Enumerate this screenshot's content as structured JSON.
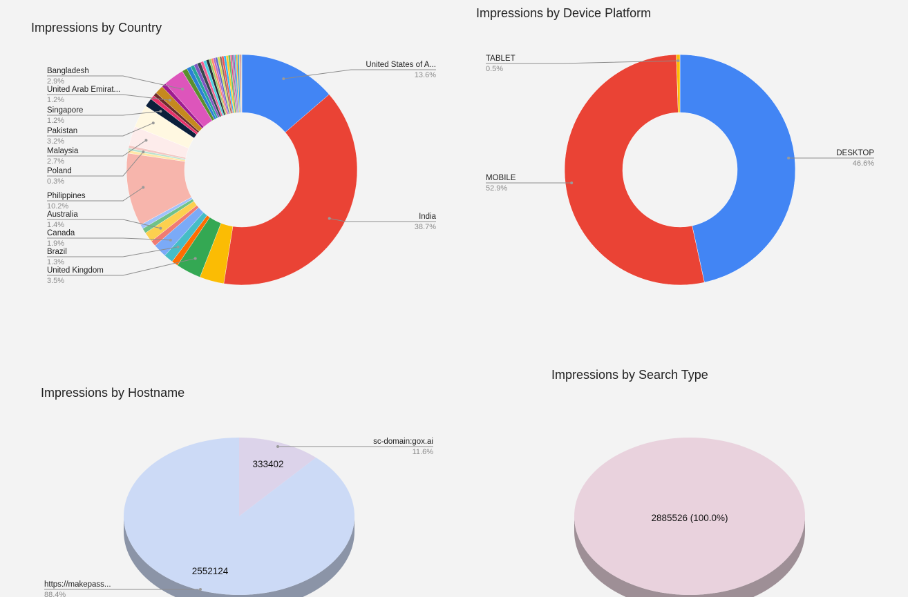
{
  "titles": {
    "country": "Impressions by Country",
    "device": "Impressions by Device Platform",
    "hostname": "Impressions by Hostname",
    "search_type": "Impressions by Search Type"
  },
  "chart_data": [
    {
      "id": "country",
      "type": "pie",
      "donut": true,
      "title": "Impressions by Country",
      "slices": [
        {
          "label": "United States of A...",
          "pct": 13.6,
          "color": "#4285f4"
        },
        {
          "label": "India",
          "pct": 38.7,
          "color": "#ea4335"
        },
        {
          "label": "",
          "pct": 3.4,
          "color": "#fbbc04"
        },
        {
          "label": "United Kingdom",
          "pct": 3.5,
          "color": "#34a853"
        },
        {
          "label": "",
          "pct": 0.9,
          "color": "#ff6d01"
        },
        {
          "label": "Brazil",
          "pct": 1.3,
          "color": "#46bdc6"
        },
        {
          "label": "Canada",
          "pct": 1.9,
          "color": "#7baaf7"
        },
        {
          "label": "",
          "pct": 0.8,
          "color": "#f07b72"
        },
        {
          "label": "Australia",
          "pct": 1.4,
          "color": "#fcd04f"
        },
        {
          "label": "",
          "pct": 0.7,
          "color": "#71c287"
        },
        {
          "label": "",
          "pct": 0.6,
          "color": "#a1c2fa"
        },
        {
          "label": "Philippines",
          "pct": 10.2,
          "color": "#f7b5ac"
        },
        {
          "label": "",
          "pct": 0.4,
          "color": "#ffe7a8"
        },
        {
          "label": "Poland",
          "pct": 0.3,
          "color": "#b7e1cd"
        },
        {
          "label": "",
          "pct": 0.4,
          "color": "#f4c7c3"
        },
        {
          "label": "Malaysia",
          "pct": 2.7,
          "color": "#fdeceb"
        },
        {
          "label": "Pakistan",
          "pct": 3.2,
          "color": "#fff8e1"
        },
        {
          "label": "Singapore",
          "pct": 1.2,
          "color": "#0b1f3b"
        },
        {
          "label": "",
          "pct": 0.6,
          "color": "#e8336b"
        },
        {
          "label": "",
          "pct": 0.5,
          "color": "#6b2b2b"
        },
        {
          "label": "United Arab Emirat...",
          "pct": 1.2,
          "color": "#c5891f"
        },
        {
          "label": "",
          "pct": 0.6,
          "color": "#9e1b8f"
        },
        {
          "label": "Bangladesh",
          "pct": 2.9,
          "color": "#dd55bb"
        },
        {
          "label": "",
          "pct": 0.7,
          "color": "#5a8f2e"
        },
        {
          "label": "",
          "pct": 0.6,
          "color": "#2b7fd6"
        },
        {
          "label": "",
          "pct": 0.5,
          "color": "#26a69a"
        },
        {
          "label": "",
          "pct": 0.5,
          "color": "#7e57c2"
        },
        {
          "label": "",
          "pct": 0.5,
          "color": "#37474f"
        },
        {
          "label": "",
          "pct": 0.4,
          "color": "#f06292"
        },
        {
          "label": "",
          "pct": 0.4,
          "color": "#4dd0e1"
        },
        {
          "label": "",
          "pct": 0.4,
          "color": "#263238"
        },
        {
          "label": "",
          "pct": 0.3,
          "color": "#9ccc65"
        },
        {
          "label": "",
          "pct": 0.3,
          "color": "#ff8a65"
        },
        {
          "label": "",
          "pct": 0.3,
          "color": "#ba68c8"
        },
        {
          "label": "",
          "pct": 0.3,
          "color": "#5c6bc0"
        },
        {
          "label": "",
          "pct": 0.3,
          "color": "#d4e157"
        },
        {
          "label": "",
          "pct": 0.3,
          "color": "#8d6e63"
        },
        {
          "label": "",
          "pct": 0.3,
          "color": "#ef5350"
        },
        {
          "label": "",
          "pct": 0.3,
          "color": "#29b6f6"
        },
        {
          "label": "",
          "pct": 0.3,
          "color": "#ffca28"
        },
        {
          "label": "",
          "pct": 0.3,
          "color": "#66bb6a"
        },
        {
          "label": "",
          "pct": 0.2,
          "color": "#ec407a"
        },
        {
          "label": "",
          "pct": 0.2,
          "color": "#78909c"
        },
        {
          "label": "",
          "pct": 0.2,
          "color": "#ab47bc"
        },
        {
          "label": "",
          "pct": 0.2,
          "color": "#26c6da"
        },
        {
          "label": "",
          "pct": 0.2,
          "color": "#ffa726"
        },
        {
          "label": "",
          "pct": 0.2,
          "color": "#1e88e5"
        },
        {
          "label": "",
          "pct": 0.1,
          "color": "#c0ca33"
        },
        {
          "label": "",
          "pct": 0.1,
          "color": "#6d4c41"
        },
        {
          "label": "",
          "pct": 0.1,
          "color": "#e53935"
        },
        {
          "label": "",
          "pct": 0.1,
          "color": "#bdbdbd"
        }
      ]
    },
    {
      "id": "device",
      "type": "pie",
      "donut": true,
      "title": "Impressions by Device Platform",
      "slices": [
        {
          "label": "DESKTOP",
          "pct": 46.6,
          "color": "#4285f4"
        },
        {
          "label": "MOBILE",
          "pct": 52.9,
          "color": "#ea4335"
        },
        {
          "label": "TABLET",
          "pct": 0.5,
          "color": "#fbbc04"
        }
      ]
    },
    {
      "id": "hostname",
      "type": "pie",
      "three_d": true,
      "title": "Impressions by Hostname",
      "slices": [
        {
          "label": "sc-domain:gox.ai",
          "pct": 11.6,
          "value": 333402,
          "color": "#dcd3ea"
        },
        {
          "label": "https://makepass...",
          "pct": 88.4,
          "value": 2552124,
          "color": "#ccdaf6"
        }
      ]
    },
    {
      "id": "search_type",
      "type": "pie",
      "three_d": true,
      "title": "Impressions by Search Type",
      "slices": [
        {
          "label": "",
          "pct": 100.0,
          "value": 2885526,
          "value_label": "2885526 (100.0%)",
          "color": "#e9d2dd"
        }
      ]
    }
  ]
}
